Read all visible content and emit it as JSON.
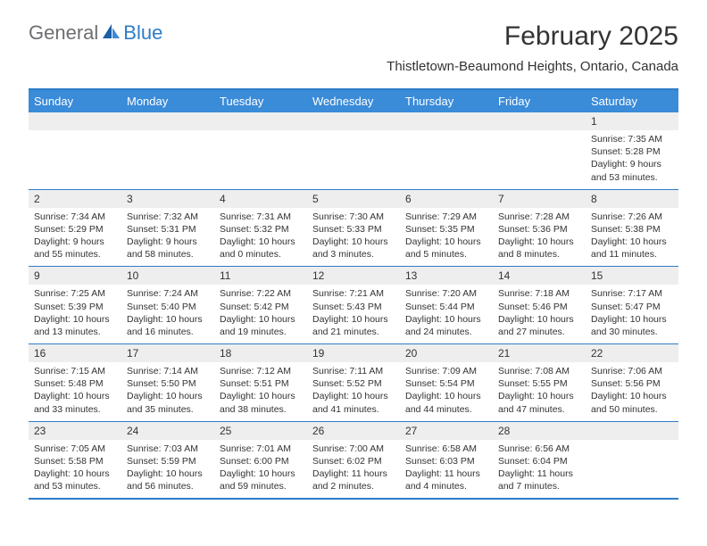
{
  "logo": {
    "part1": "General",
    "part2": "Blue"
  },
  "title": "February 2025",
  "location": "Thistletown-Beaumond Heights, Ontario, Canada",
  "colors": {
    "header_bar": "#3a8bd8",
    "border": "#2d7dc7",
    "daynum_bg": "#eeeeee",
    "text": "#333333",
    "logo_gray": "#6d6e71",
    "logo_blue": "#2d7dc7",
    "white": "#ffffff"
  },
  "weekdays": [
    "Sunday",
    "Monday",
    "Tuesday",
    "Wednesday",
    "Thursday",
    "Friday",
    "Saturday"
  ],
  "weeks": [
    [
      null,
      null,
      null,
      null,
      null,
      null,
      {
        "n": "1",
        "sr": "7:35 AM",
        "ss": "5:28 PM",
        "dl": "9 hours and 53 minutes."
      }
    ],
    [
      {
        "n": "2",
        "sr": "7:34 AM",
        "ss": "5:29 PM",
        "dl": "9 hours and 55 minutes."
      },
      {
        "n": "3",
        "sr": "7:32 AM",
        "ss": "5:31 PM",
        "dl": "9 hours and 58 minutes."
      },
      {
        "n": "4",
        "sr": "7:31 AM",
        "ss": "5:32 PM",
        "dl": "10 hours and 0 minutes."
      },
      {
        "n": "5",
        "sr": "7:30 AM",
        "ss": "5:33 PM",
        "dl": "10 hours and 3 minutes."
      },
      {
        "n": "6",
        "sr": "7:29 AM",
        "ss": "5:35 PM",
        "dl": "10 hours and 5 minutes."
      },
      {
        "n": "7",
        "sr": "7:28 AM",
        "ss": "5:36 PM",
        "dl": "10 hours and 8 minutes."
      },
      {
        "n": "8",
        "sr": "7:26 AM",
        "ss": "5:38 PM",
        "dl": "10 hours and 11 minutes."
      }
    ],
    [
      {
        "n": "9",
        "sr": "7:25 AM",
        "ss": "5:39 PM",
        "dl": "10 hours and 13 minutes."
      },
      {
        "n": "10",
        "sr": "7:24 AM",
        "ss": "5:40 PM",
        "dl": "10 hours and 16 minutes."
      },
      {
        "n": "11",
        "sr": "7:22 AM",
        "ss": "5:42 PM",
        "dl": "10 hours and 19 minutes."
      },
      {
        "n": "12",
        "sr": "7:21 AM",
        "ss": "5:43 PM",
        "dl": "10 hours and 21 minutes."
      },
      {
        "n": "13",
        "sr": "7:20 AM",
        "ss": "5:44 PM",
        "dl": "10 hours and 24 minutes."
      },
      {
        "n": "14",
        "sr": "7:18 AM",
        "ss": "5:46 PM",
        "dl": "10 hours and 27 minutes."
      },
      {
        "n": "15",
        "sr": "7:17 AM",
        "ss": "5:47 PM",
        "dl": "10 hours and 30 minutes."
      }
    ],
    [
      {
        "n": "16",
        "sr": "7:15 AM",
        "ss": "5:48 PM",
        "dl": "10 hours and 33 minutes."
      },
      {
        "n": "17",
        "sr": "7:14 AM",
        "ss": "5:50 PM",
        "dl": "10 hours and 35 minutes."
      },
      {
        "n": "18",
        "sr": "7:12 AM",
        "ss": "5:51 PM",
        "dl": "10 hours and 38 minutes."
      },
      {
        "n": "19",
        "sr": "7:11 AM",
        "ss": "5:52 PM",
        "dl": "10 hours and 41 minutes."
      },
      {
        "n": "20",
        "sr": "7:09 AM",
        "ss": "5:54 PM",
        "dl": "10 hours and 44 minutes."
      },
      {
        "n": "21",
        "sr": "7:08 AM",
        "ss": "5:55 PM",
        "dl": "10 hours and 47 minutes."
      },
      {
        "n": "22",
        "sr": "7:06 AM",
        "ss": "5:56 PM",
        "dl": "10 hours and 50 minutes."
      }
    ],
    [
      {
        "n": "23",
        "sr": "7:05 AM",
        "ss": "5:58 PM",
        "dl": "10 hours and 53 minutes."
      },
      {
        "n": "24",
        "sr": "7:03 AM",
        "ss": "5:59 PM",
        "dl": "10 hours and 56 minutes."
      },
      {
        "n": "25",
        "sr": "7:01 AM",
        "ss": "6:00 PM",
        "dl": "10 hours and 59 minutes."
      },
      {
        "n": "26",
        "sr": "7:00 AM",
        "ss": "6:02 PM",
        "dl": "11 hours and 2 minutes."
      },
      {
        "n": "27",
        "sr": "6:58 AM",
        "ss": "6:03 PM",
        "dl": "11 hours and 4 minutes."
      },
      {
        "n": "28",
        "sr": "6:56 AM",
        "ss": "6:04 PM",
        "dl": "11 hours and 7 minutes."
      },
      null
    ]
  ],
  "labels": {
    "sunrise": "Sunrise:",
    "sunset": "Sunset:",
    "daylight": "Daylight:"
  }
}
